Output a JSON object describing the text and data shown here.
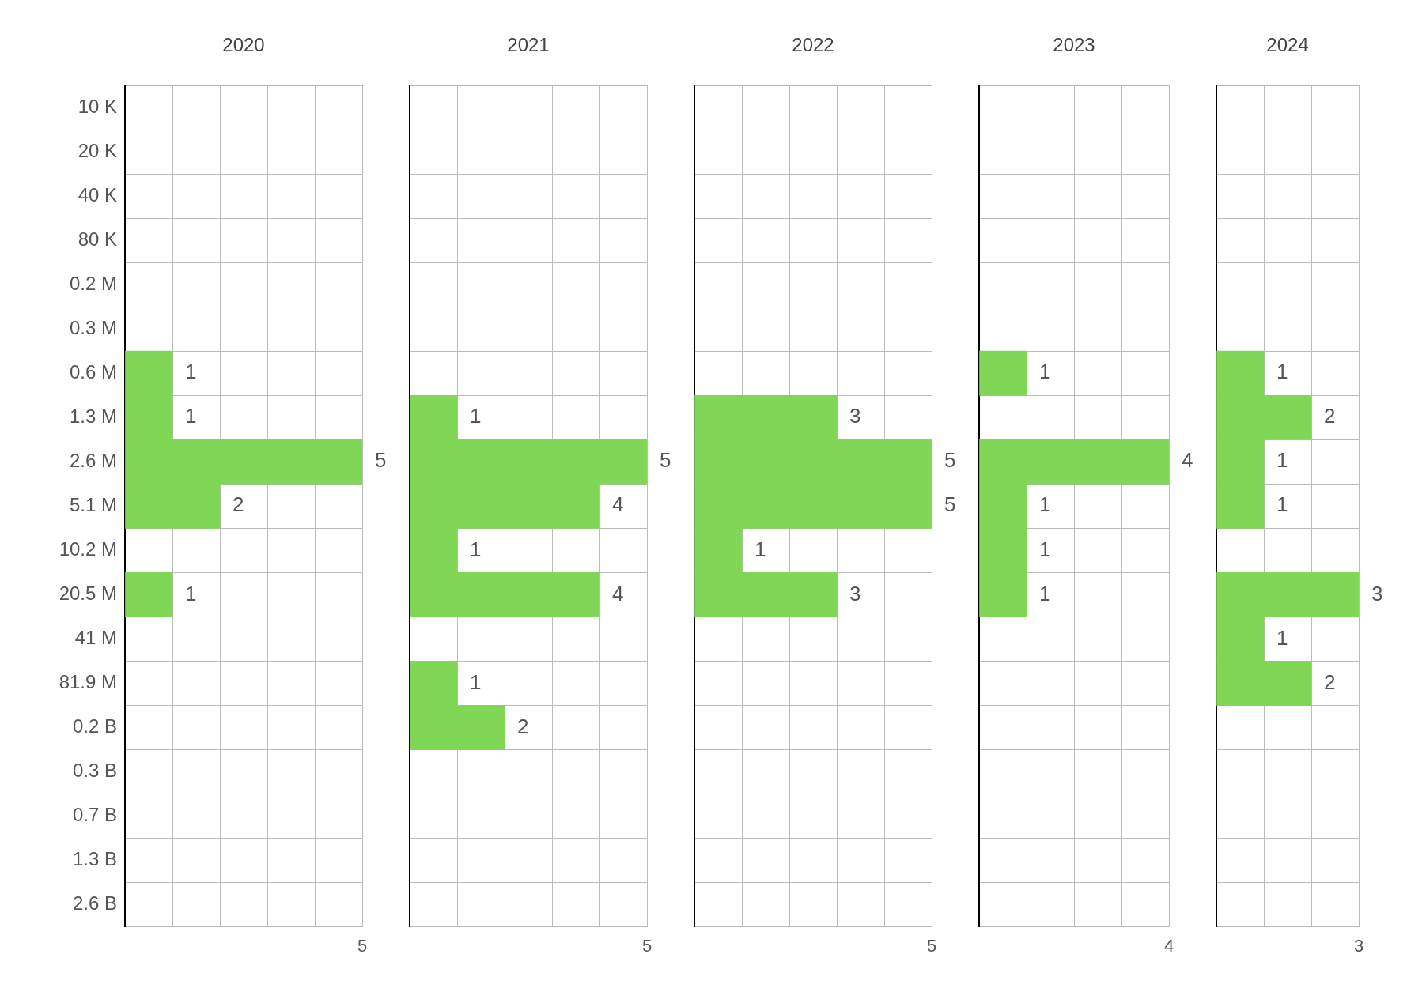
{
  "chart_data": [
    {
      "type": "bar",
      "orientation": "horizontal",
      "title": "2020",
      "categories": [
        "10 K",
        "20 K",
        "40 K",
        "80 K",
        "0.2 M",
        "0.3 M",
        "0.6 M",
        "1.3 M",
        "2.6 M",
        "5.1 M",
        "10.2 M",
        "20.5 M",
        "41 M",
        "81.9 M",
        "0.2 B",
        "0.3 B",
        "0.7 B",
        "1.3 B",
        "2.6 B"
      ],
      "values": [
        null,
        null,
        null,
        null,
        null,
        null,
        1,
        1,
        5,
        2,
        null,
        1,
        null,
        null,
        null,
        null,
        null,
        null,
        null
      ],
      "color": "#80d655",
      "xlim": [
        0,
        5
      ],
      "xticks": [
        {
          "value": 0,
          "label": null
        },
        {
          "value": 1,
          "label": null
        },
        {
          "value": 2,
          "label": null
        },
        {
          "value": 3,
          "label": null
        },
        {
          "value": 4,
          "label": null
        },
        5
      ],
      "grid": true,
      "legend": false,
      "data_labels": true
    },
    {
      "type": "bar",
      "orientation": "horizontal",
      "title": "2021",
      "values": [
        null,
        null,
        null,
        null,
        null,
        null,
        null,
        1,
        5,
        4,
        1,
        4,
        null,
        1,
        2,
        null,
        null,
        null,
        null
      ],
      "color": "#80d655",
      "xlim": [
        0,
        5
      ],
      "xticks": [
        {
          "value": 0,
          "label": null
        },
        {
          "value": 1,
          "label": null
        },
        {
          "value": 2,
          "label": null
        },
        {
          "value": 3,
          "label": null
        },
        {
          "value": 4,
          "label": null
        },
        5
      ],
      "grid": true,
      "legend": false,
      "data_labels": true,
      "tick_labels": "x"
    },
    {
      "type": "bar",
      "orientation": "horizontal",
      "title": "2022",
      "values": [
        null,
        null,
        null,
        null,
        null,
        null,
        null,
        3,
        5,
        5,
        1,
        3,
        null,
        null,
        null,
        null,
        null,
        null,
        null
      ],
      "color": "#80d655",
      "xlim": [
        0,
        5
      ],
      "xticks": [
        {
          "value": 0,
          "label": null
        },
        {
          "value": 1,
          "label": null
        },
        {
          "value": 2,
          "label": null
        },
        {
          "value": 3,
          "label": null
        },
        {
          "value": 4,
          "label": null
        },
        5
      ],
      "grid": true,
      "legend": false,
      "data_labels": true,
      "tick_labels": "x"
    },
    {
      "type": "bar",
      "orientation": "horizontal",
      "title": "2023",
      "values": [
        null,
        null,
        null,
        null,
        null,
        null,
        1,
        null,
        4,
        1,
        1,
        1,
        null,
        null,
        null,
        null,
        null,
        null,
        null
      ],
      "color": "#80d655",
      "xlim": [
        0,
        4
      ],
      "xticks": [
        {
          "value": 0,
          "label": null
        },
        {
          "value": 1,
          "label": null
        },
        {
          "value": 2,
          "label": null
        },
        {
          "value": 3,
          "label": null
        },
        4
      ],
      "grid": true,
      "legend": false,
      "data_labels": true,
      "tick_labels": "x"
    },
    {
      "type": "bar",
      "orientation": "horizontal",
      "title": "2024",
      "values": [
        null,
        null,
        null,
        null,
        null,
        null,
        1,
        2,
        1,
        1,
        null,
        3,
        1,
        2,
        null,
        null,
        null,
        null,
        null
      ],
      "color": "#80d655",
      "xlim": [
        0,
        3
      ],
      "xticks": [
        {
          "value": 0,
          "label": null
        },
        {
          "value": 1,
          "label": null
        },
        {
          "value": 2,
          "label": null
        },
        3
      ],
      "grid": true,
      "legend": false,
      "data_labels": true,
      "tick_labels": "x"
    }
  ]
}
